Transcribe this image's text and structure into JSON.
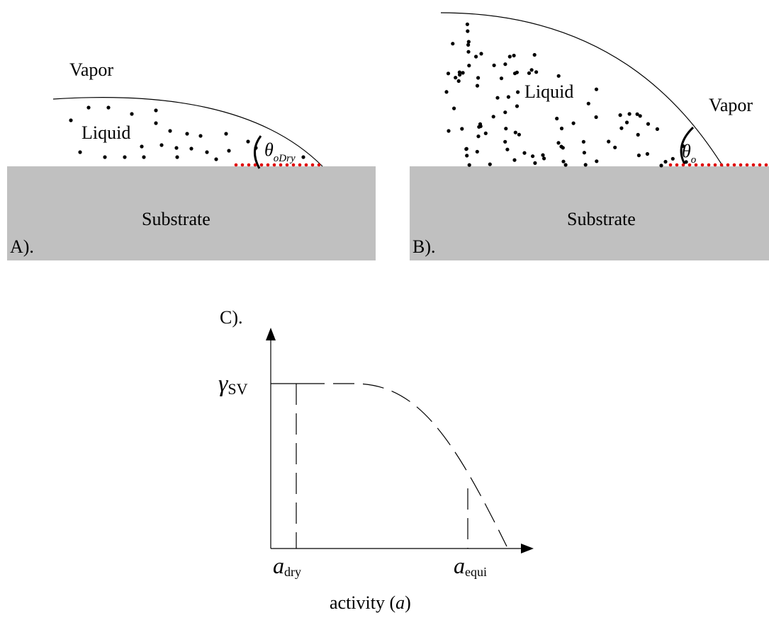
{
  "panel_a": {
    "vapor": "Vapor",
    "liquid": "Liquid",
    "substrate": "Substrate",
    "label": "A).",
    "angle": {
      "symbol": "θ",
      "subscript": "oDry"
    }
  },
  "panel_b": {
    "liquid": "Liquid",
    "vapor": "Vapor",
    "substrate": "Substrate",
    "label": "B).",
    "angle": {
      "symbol": "θ",
      "subscript": "o"
    }
  },
  "panel_c": {
    "label": "C).",
    "y_axis": {
      "symbol": "γ",
      "subscript": "SV"
    },
    "x_marks": [
      {
        "symbol": "a",
        "subscript": "dry"
      },
      {
        "symbol": "a",
        "subscript": "equi"
      }
    ],
    "x_axis": {
      "parts": [
        "activity (",
        "a",
        ")"
      ]
    }
  }
}
